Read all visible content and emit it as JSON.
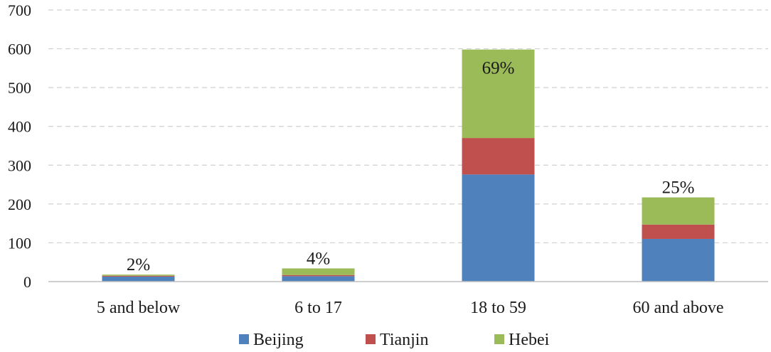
{
  "chart_data": {
    "type": "bar",
    "stacked": true,
    "categories": [
      "5 and below",
      "6 to 17",
      "18 to 59",
      "60 and above"
    ],
    "series": [
      {
        "name": "Beijing",
        "color": "#4f81bd",
        "values": [
          13,
          14,
          276,
          110
        ]
      },
      {
        "name": "Tianjin",
        "color": "#c0504d",
        "values": [
          2,
          3,
          94,
          37
        ]
      },
      {
        "name": "Hebei",
        "color": "#9bbb59",
        "values": [
          3,
          17,
          228,
          70
        ]
      }
    ],
    "data_labels": [
      "2%",
      "4%",
      "69%",
      "25%"
    ],
    "ylim": [
      0,
      700
    ],
    "yticks": [
      0,
      100,
      200,
      300,
      400,
      500,
      600,
      700
    ],
    "grid": true,
    "legend_position": "bottom"
  }
}
